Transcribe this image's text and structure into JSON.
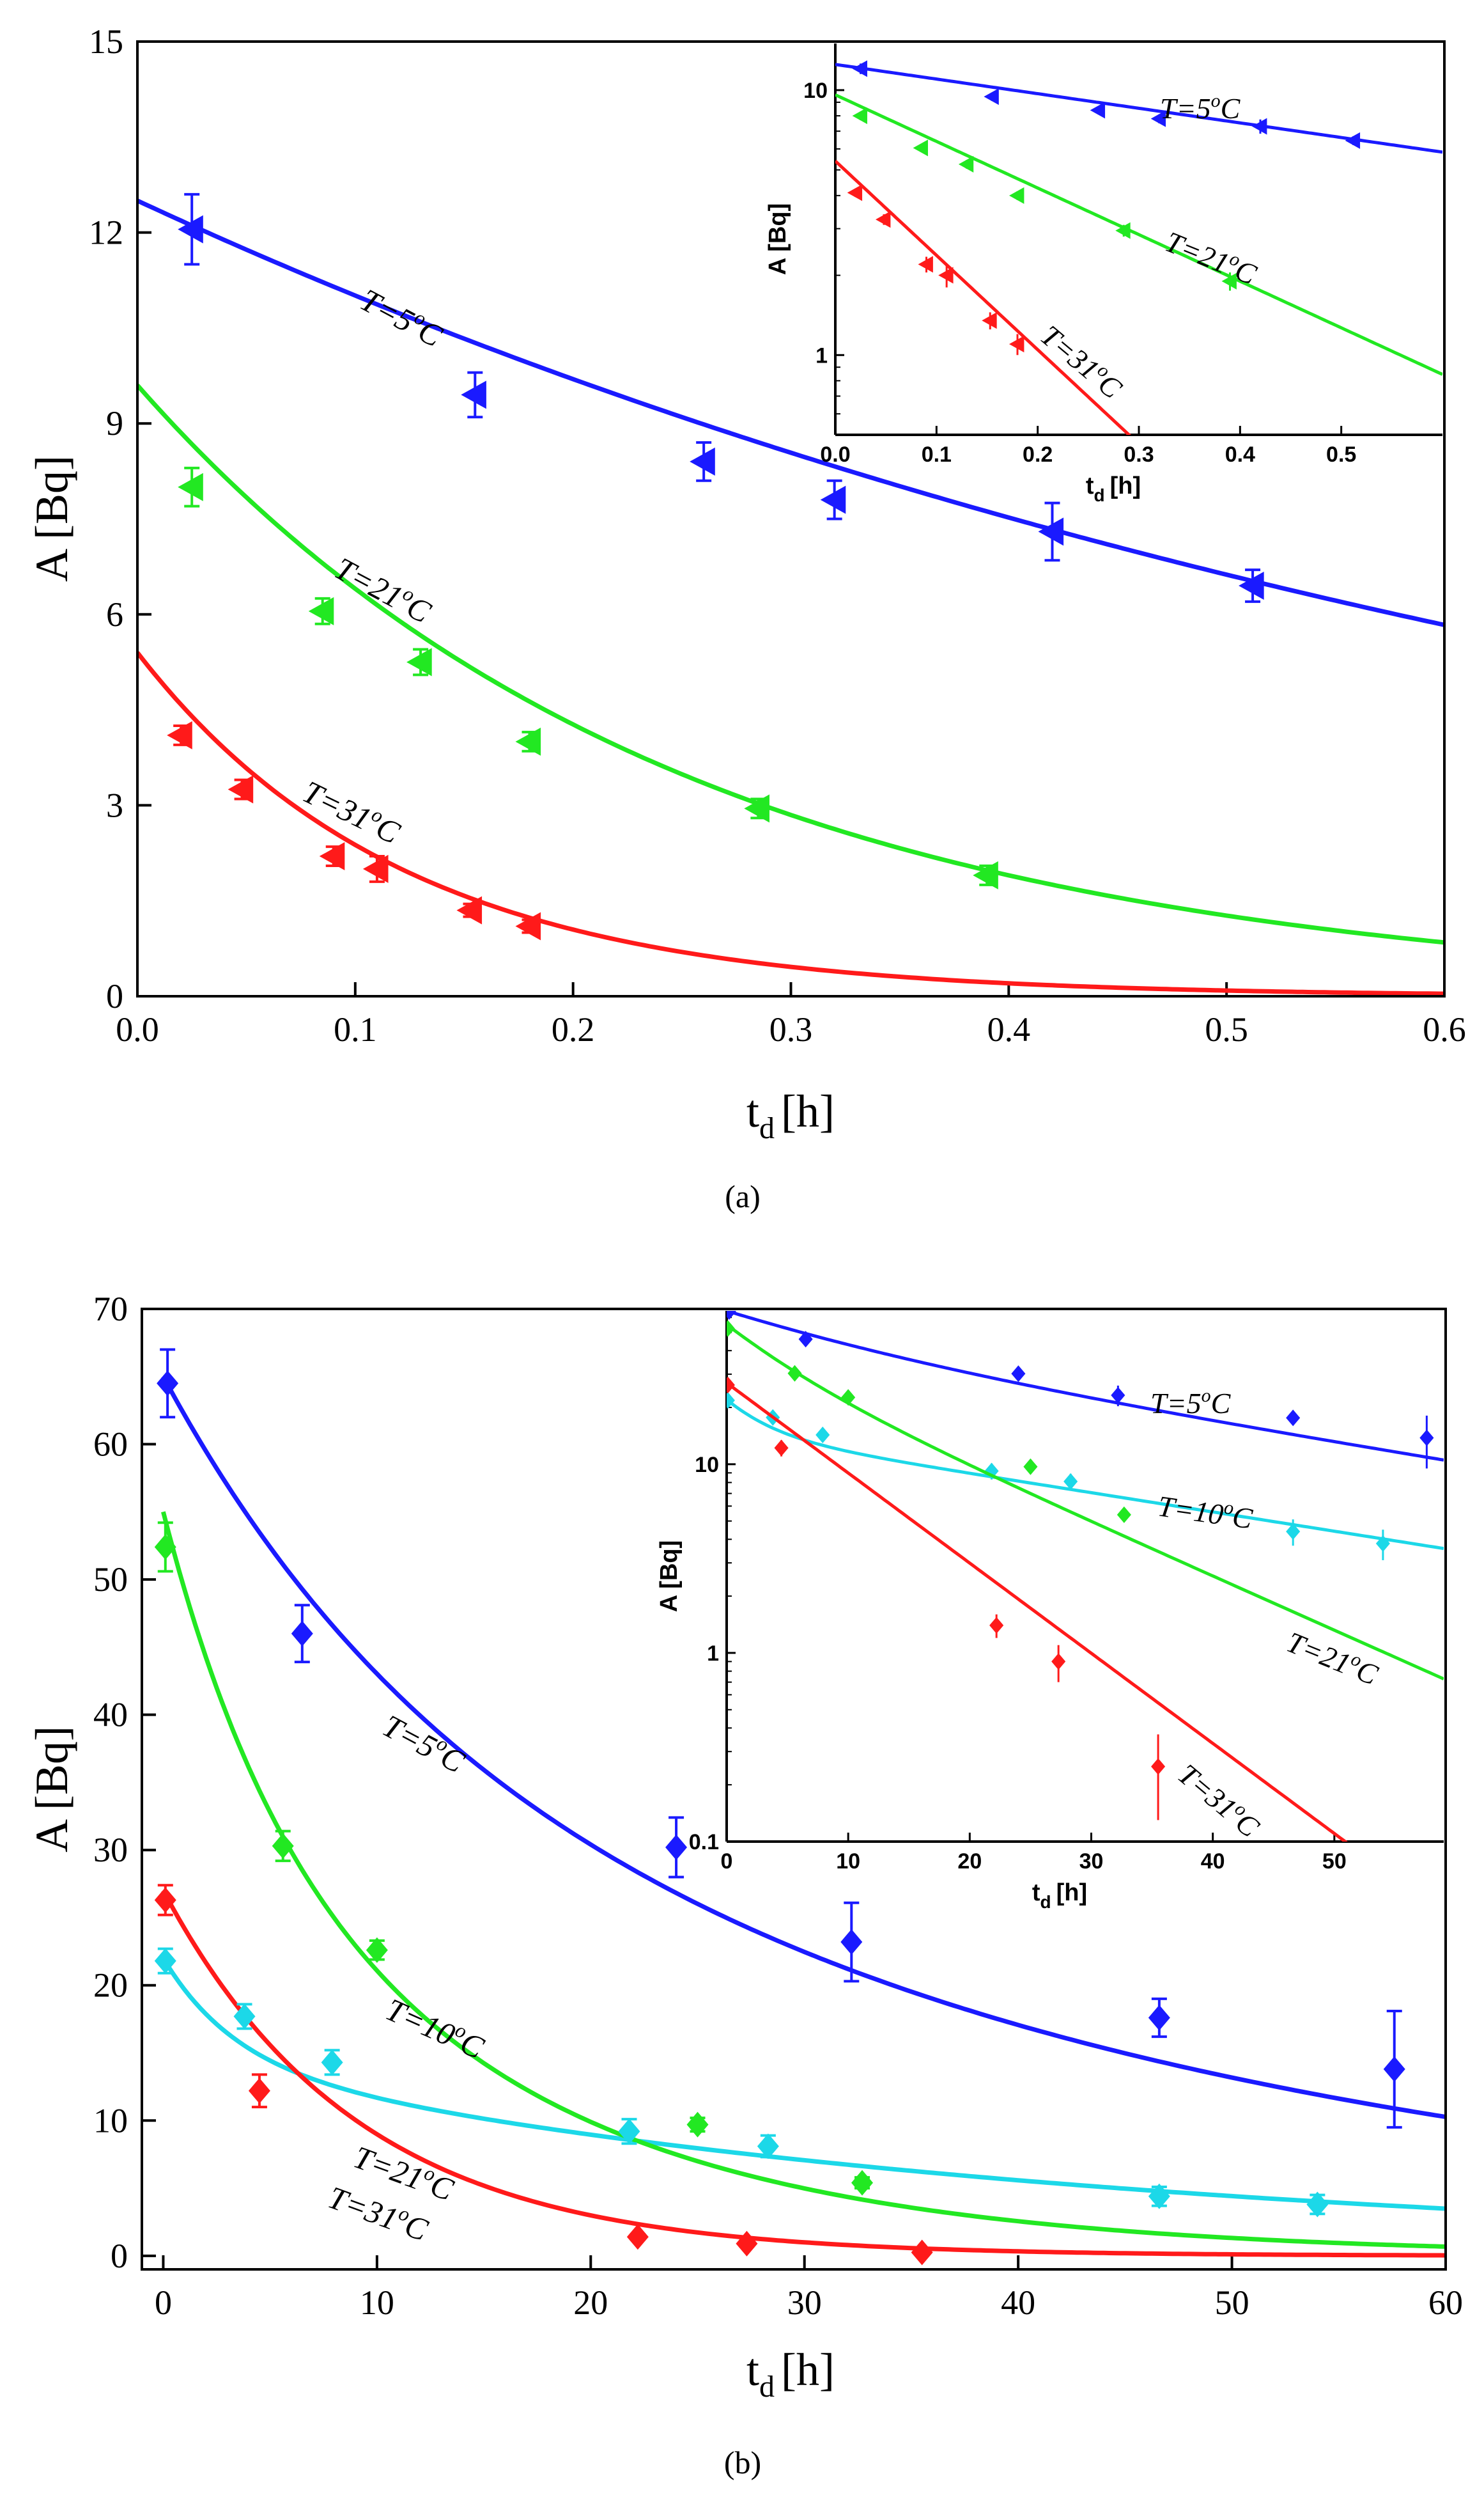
{
  "panels": [
    {
      "caption": "(a)",
      "chart_data": {
        "type": "line",
        "xlabel_main": "t",
        "xlabel_sub": "d",
        "xlabel_unit": "[h]",
        "ylabel": "A [Bq]",
        "xlim": [
          0,
          0.6
        ],
        "ylim": [
          0,
          15
        ],
        "xticks": [
          "0.0",
          "0.1",
          "0.2",
          "0.3",
          "0.4",
          "0.5",
          "0.6"
        ],
        "yticks": [
          "0",
          "3",
          "6",
          "9",
          "12",
          "15"
        ],
        "series": [
          {
            "name": "T=5°C",
            "label_main": "T=5",
            "label_sup": "o",
            "label_end": "C",
            "color": "#1a1aff",
            "marker": "triangle-left",
            "fit": {
              "A0": 12.5,
              "lambda": 1.27
            },
            "x": [
              0.025,
              0.155,
              0.26,
              0.32,
              0.42,
              0.512
            ],
            "y": [
              12.05,
              9.45,
              8.4,
              7.8,
              7.3,
              6.45
            ],
            "err": [
              0.55,
              0.35,
              0.3,
              0.3,
              0.45,
              0.25
            ]
          },
          {
            "name": "T=21°C",
            "label_main": "T=21",
            "label_sup": "o",
            "label_end": "C",
            "color": "#22e822",
            "marker": "triangle-left",
            "fit": {
              "A0": 9.6,
              "lambda": 4.05
            },
            "x": [
              0.025,
              0.085,
              0.13,
              0.18,
              0.285,
              0.39
            ],
            "y": [
              8.0,
              6.05,
              5.25,
              4.0,
              2.95,
              1.9
            ],
            "err": [
              0.3,
              0.2,
              0.2,
              0.15,
              0.15,
              0.15
            ]
          },
          {
            "name": "T=31°C",
            "label_main": "T=31",
            "label_sup": "o",
            "label_end": "C",
            "color": "#ff1a1a",
            "marker": "triangle-left",
            "fit": {
              "A0": 5.4,
              "lambda": 8.2
            },
            "x": [
              0.02,
              0.048,
              0.09,
              0.11,
              0.153,
              0.18
            ],
            "y": [
              4.1,
              3.25,
              2.2,
              2.0,
              1.35,
              1.1
            ],
            "err": [
              0.15,
              0.15,
              0.15,
              0.2,
              0.1,
              0.1
            ]
          }
        ],
        "inset": {
          "scale": "log",
          "xlabel_main": "t",
          "xlabel_sub": "d",
          "xlabel_unit": "[h]",
          "ylabel": "A [Bq]",
          "xlim": [
            0,
            0.6
          ],
          "ylim": [
            0.5,
            15
          ],
          "xticks": [
            "0.0",
            "0.1",
            "0.2",
            "0.3",
            "0.4",
            "0.5"
          ],
          "yticks": [
            "1",
            "10"
          ]
        }
      }
    },
    {
      "caption": "(b)",
      "chart_data": {
        "type": "line",
        "xlabel_main": "t",
        "xlabel_sub": "d",
        "xlabel_unit": "[h]",
        "ylabel": "A [Bq]",
        "xlim": [
          -1,
          60
        ],
        "ylim": [
          -1,
          70
        ],
        "xticks": [
          "0",
          "10",
          "20",
          "30",
          "40",
          "50",
          "60"
        ],
        "yticks": [
          "0",
          "10",
          "20",
          "30",
          "40",
          "50",
          "60",
          "70"
        ],
        "series": [
          {
            "name": "T=5°C",
            "label_main": "T=5",
            "label_sup": "o",
            "label_end": "C",
            "color": "#1a1aff",
            "marker": "diamond",
            "fit": {
              "A0": 65.0,
              "lambda": 0.085,
              "lam_long": 0.0238
            },
            "x": [
              0.2,
              6.5,
              24.0,
              32.2,
              46.6,
              57.6
            ],
            "y": [
              64.5,
              46.0,
              30.2,
              23.2,
              17.6,
              13.8
            ],
            "err": [
              2.5,
              2.1,
              2.2,
              2.9,
              1.4,
              4.3
            ]
          },
          {
            "name": "T=10°C",
            "label_main": "T=10",
            "label_sup": "o",
            "label_end": "C",
            "color": "#1cd8e8",
            "marker": "diamond",
            "fit": {
              "A0": 22.0,
              "lambda": 0.3,
              "lam_long": 0.0235
            },
            "x": [
              0.1,
              3.8,
              7.9,
              21.8,
              28.3,
              46.6,
              54.0
            ],
            "y": [
              21.8,
              17.7,
              14.3,
              9.2,
              8.1,
              4.4,
              3.8
            ],
            "err": [
              0.9,
              0.9,
              0.9,
              0.9,
              0.8,
              0.7,
              0.7
            ]
          },
          {
            "name": "T=21°C",
            "label_main": "T=21",
            "label_sup": "o",
            "label_end": "C",
            "color": "#22e822",
            "marker": "diamond",
            "fit": {
              "A0": 55.0,
              "lambda": 0.2,
              "lam_long": 0.066
            },
            "x": [
              0.1,
              5.6,
              10.0,
              25.0,
              32.7
            ],
            "y": [
              52.4,
              30.3,
              22.6,
              9.7,
              5.4
            ],
            "err": [
              1.8,
              1.1,
              0.7,
              0.5,
              0.4
            ]
          },
          {
            "name": "T=31°C",
            "label_main": "T=31",
            "label_sup": "o",
            "label_end": "C",
            "color": "#ff1a1a",
            "marker": "diamond",
            "fit": {
              "A0": 27.0,
              "lambda": 0.11
            },
            "x": [
              0.1,
              4.5,
              22.2,
              27.3,
              35.5
            ],
            "y": [
              26.3,
              12.2,
              1.4,
              0.9,
              0.25
            ],
            "err": [
              1.1,
              1.2,
              0.2,
              0.2,
              0.12
            ]
          }
        ],
        "inset": {
          "scale": "log",
          "xlabel_main": "t",
          "xlabel_sub": "d",
          "xlabel_unit": "[h]",
          "ylabel": "A [Bq]",
          "xlim": [
            0,
            59
          ],
          "ylim": [
            0.1,
            65
          ],
          "xticks": [
            "0",
            "10",
            "20",
            "30",
            "40",
            "50"
          ],
          "yticks": [
            "0.1",
            "1",
            "10"
          ]
        }
      }
    }
  ]
}
